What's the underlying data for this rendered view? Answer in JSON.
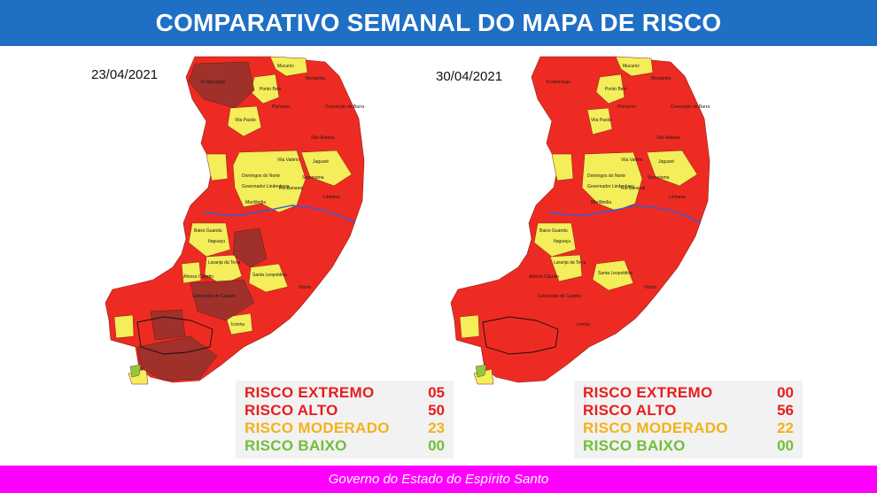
{
  "header": {
    "title": "COMPARATIVO SEMANAL DO MAPA DE RISCO"
  },
  "colors": {
    "extremo": "#a0302a",
    "alto": "#ee2b22",
    "moderado": "#f3ee5a",
    "baixo": "#8fca3e",
    "river": "#2d5fd8",
    "header": "#1f6fc5",
    "footer": "#ff00ff"
  },
  "maps": [
    {
      "date": "23/04/2021",
      "legend": [
        {
          "label": "RISCO EXTREMO",
          "value": "05",
          "color": "#e81d1d"
        },
        {
          "label": "RISCO ALTO",
          "value": "50",
          "color": "#e81d1d"
        },
        {
          "label": "RISCO MODERADO",
          "value": "23",
          "color": "#f2b21b"
        },
        {
          "label": "RISCO BAIXO",
          "value": "00",
          "color": "#6fbf3a"
        }
      ]
    },
    {
      "date": "30/04/2021",
      "legend": [
        {
          "label": "RISCO EXTREMO",
          "value": "00",
          "color": "#e81d1d"
        },
        {
          "label": "RISCO ALTO",
          "value": "56",
          "color": "#e81d1d"
        },
        {
          "label": "RISCO MODERADO",
          "value": "22",
          "color": "#f2b21b"
        },
        {
          "label": "RISCO BAIXO",
          "value": "00",
          "color": "#6fbf3a"
        }
      ]
    }
  ],
  "towns": {
    "mucurici": "Mucurici",
    "ponto_belo": "Ponto Belo",
    "montanha": "Montanha",
    "ecoporanga": "Ecoporanga",
    "pinheiros": "Pinheiros",
    "conceicao_barra": "Conceição da Barra",
    "vila_pavao": "Vila Pavão",
    "sao_mateus": "São Mateus",
    "jaguare": "Jaguaré",
    "vila_valerio": "Vila Valério",
    "sooretama": "Sooretama",
    "rio_bananal": "Rio Bananal",
    "linhares": "Linhares",
    "baixo_guandu": "Baixo Guandu",
    "itaguacu": "Itaguaçu",
    "laranja_terra": "Laranja da Terra",
    "santa_leopoldina": "Santa Leopoldina",
    "vitoria": "Vitória",
    "iconha": "Iconha",
    "governador_lindenberg": "Governador Lindenberg",
    "domingos_norte": "Domingos do Norte",
    "marilandia": "Marilândia",
    "afonso_claudio": "Afonso Cláudio",
    "conceicao_castelo": "Conceição do Castelo"
  },
  "footer": {
    "text": "Governo do Estado do Espírito Santo"
  }
}
